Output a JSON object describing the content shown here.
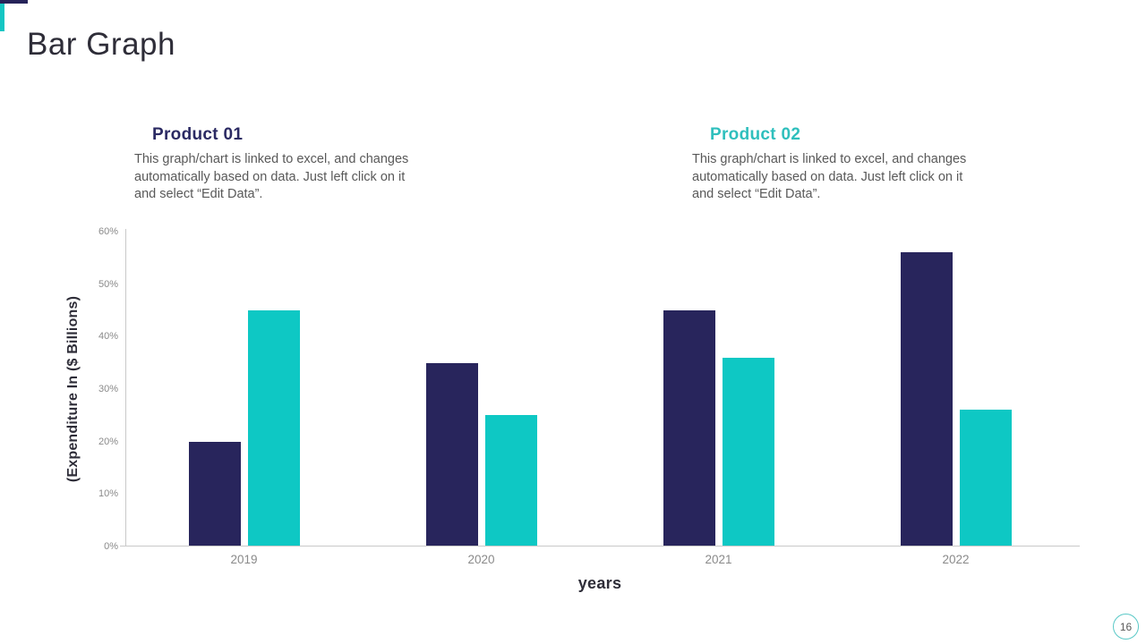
{
  "slide": {
    "title": "Bar Graph",
    "page_number": "16"
  },
  "products": [
    {
      "label": "Product 01",
      "description_lines": [
        "This graph/chart is linked to excel, and changes",
        "automatically based on data. Just left click on it",
        "and select “Edit Data”."
      ]
    },
    {
      "label": "Product 02",
      "description_lines": [
        "This graph/chart is linked to excel, and changes",
        "automatically based on data. Just left click on it",
        "and select “Edit Data”."
      ]
    }
  ],
  "chart_data": {
    "type": "bar",
    "categories": [
      "2019",
      "2020",
      "2021",
      "2022"
    ],
    "series": [
      {
        "name": "Product 01",
        "color": "#28255C",
        "values": [
          20,
          35,
          45,
          56
        ]
      },
      {
        "name": "Product 02",
        "color": "#0EC8C4",
        "values": [
          45,
          25,
          36,
          26
        ]
      }
    ],
    "title": "",
    "xlabel": "years",
    "ylabel": "(Expenditure In ($ Billions)",
    "ylim": [
      0,
      60
    ],
    "ytick_step": 10,
    "ytick_labels": [
      "0%",
      "10%",
      "20%",
      "30%",
      "40%",
      "50%",
      "60%"
    ],
    "grid": false,
    "legend_position": "none"
  },
  "palette": {
    "navy": "#28255C",
    "teal": "#0EC8C4",
    "heading_navy": "#2B2A63",
    "heading_teal": "#2FBFBD",
    "title_text": "#2E2D38",
    "body_text": "#595959",
    "axis_text": "#8A8A8A",
    "axis_line": "#C9C9C9",
    "badge_border": "#5BC9C7"
  }
}
